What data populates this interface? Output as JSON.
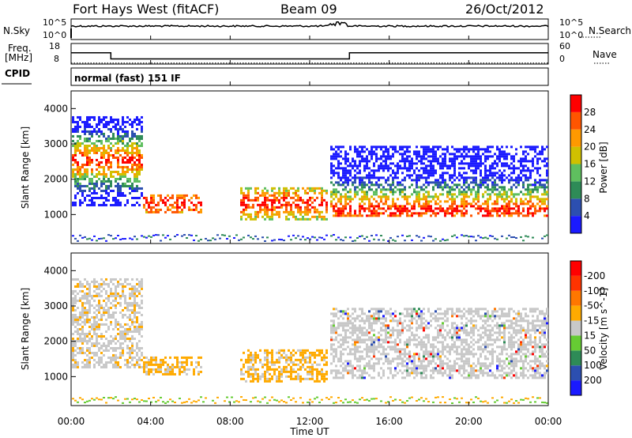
{
  "header": {
    "station": "Fort Hays West (fitACF)",
    "beam": "Beam 09",
    "date": "26/Oct/2012"
  },
  "side_labels": {
    "nsky": "N.Sky",
    "nsearch": "N.Search",
    "freq": "Freq.",
    "mhz": "[MHz]",
    "nave": "Nave",
    "cpid": "CPID"
  },
  "noise_panel": {
    "left_ticks": [
      "10^5",
      "10^0"
    ],
    "right_ticks": [
      "10^5",
      "10^0"
    ]
  },
  "freq_panel": {
    "left_ticks": [
      "18",
      "8"
    ],
    "right_ticks": [
      "60",
      "0"
    ],
    "freq_steps_ut": [
      [
        0,
        2,
        13.5
      ],
      [
        2,
        14,
        10.5
      ],
      [
        14,
        24,
        13.5
      ]
    ],
    "nave_level": 3
  },
  "cpid_text": "normal (fast) 151 IF",
  "x_axis": {
    "label": "Time UT",
    "ticks": [
      "00:00",
      "04:00",
      "08:00",
      "12:00",
      "16:00",
      "20:00",
      "00:00"
    ],
    "range": [
      0,
      24
    ]
  },
  "y_axis": {
    "label": "Slant Range [km]",
    "ticks": [
      "1000",
      "2000",
      "3000",
      "4000"
    ],
    "range": [
      180,
      4500
    ]
  },
  "power_colorbar": {
    "label": "Power [dB]",
    "ticks": [
      "4",
      "8",
      "12",
      "16",
      "20",
      "24",
      "28"
    ],
    "colors": [
      "#1a1aff",
      "#2c4fb0",
      "#2e8b57",
      "#5fbf5f",
      "#d0c000",
      "#ff9900",
      "#ff5500",
      "#ff0000"
    ]
  },
  "velocity_colorbar": {
    "label": "Velocity [m s^-1]",
    "ticks": [
      "200",
      "100",
      "50",
      "15",
      "-15",
      "-50",
      "-100",
      "-200"
    ],
    "colors": [
      "#1a1aff",
      "#2c4fb0",
      "#2e8b57",
      "#66cc33",
      "#c8c8c8",
      "#ffaa00",
      "#ff7700",
      "#ff3300",
      "#ff0000"
    ]
  },
  "chart_data": {
    "type": "heatmap",
    "time_range_ut": [
      0,
      24
    ],
    "range_km": [
      180,
      4500
    ],
    "echo_regions": [
      {
        "name": "early",
        "t": [
          0.0,
          3.5
        ],
        "r": [
          1300,
          3800
        ]
      },
      {
        "name": "mid1",
        "t": [
          3.5,
          6.5
        ],
        "r": [
          1100,
          1600
        ]
      },
      {
        "name": "mid2",
        "t": [
          8.5,
          12.8
        ],
        "r": [
          900,
          1800
        ]
      },
      {
        "name": "late",
        "t": [
          13.0,
          24.0
        ],
        "r": [
          1000,
          3000
        ]
      }
    ]
  }
}
